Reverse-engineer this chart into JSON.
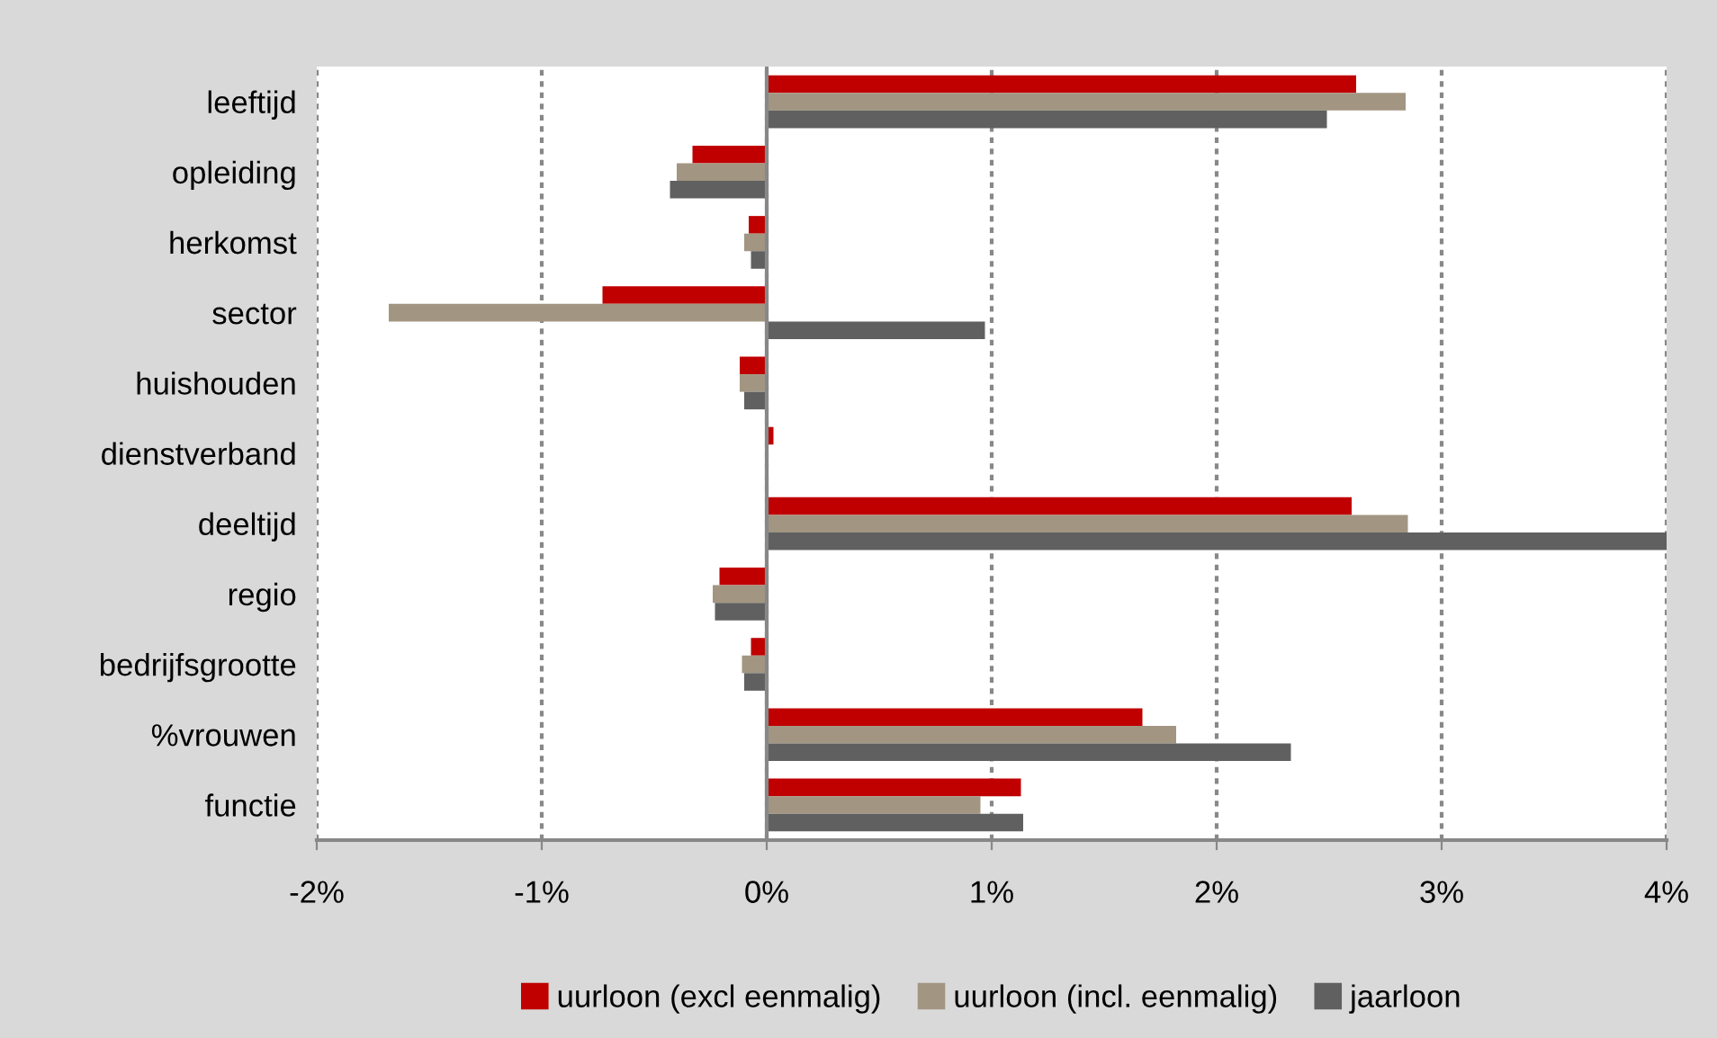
{
  "chart_data": {
    "type": "bar",
    "orientation": "horizontal",
    "categories": [
      "leeftijd",
      "opleiding",
      "herkomst",
      "sector",
      "huishouden",
      "dienstverband",
      "deeltijd",
      "regio",
      "bedrijfsgrootte",
      "%vrouwen",
      "functie"
    ],
    "series": [
      {
        "name": "uurloon (excl eenmalig)",
        "color": "#c00000",
        "values": [
          2.62,
          -0.33,
          -0.08,
          -0.73,
          -0.12,
          0.03,
          2.6,
          -0.21,
          -0.07,
          1.67,
          1.13
        ]
      },
      {
        "name": "uurloon (incl. eenmalig)",
        "color": "#a29682",
        "values": [
          2.84,
          -0.4,
          -0.1,
          -1.68,
          -0.12,
          0,
          2.85,
          -0.24,
          -0.11,
          1.82,
          0.95
        ]
      },
      {
        "name": "jaarloon",
        "color": "#606060",
        "values": [
          2.49,
          -0.43,
          -0.07,
          0.97,
          -0.1,
          0,
          4.0,
          -0.23,
          -0.1,
          2.33,
          1.14
        ]
      }
    ],
    "xlim": [
      -2,
      4
    ],
    "xticks": [
      {
        "value": -2,
        "label": "-2%"
      },
      {
        "value": -1,
        "label": "-1%"
      },
      {
        "value": 0,
        "label": "0%"
      },
      {
        "value": 1,
        "label": "1%"
      },
      {
        "value": 2,
        "label": "2%"
      },
      {
        "value": 3,
        "label": "3%"
      },
      {
        "value": 4,
        "label": "4%"
      }
    ],
    "grid": "x",
    "legend": "bottom"
  }
}
